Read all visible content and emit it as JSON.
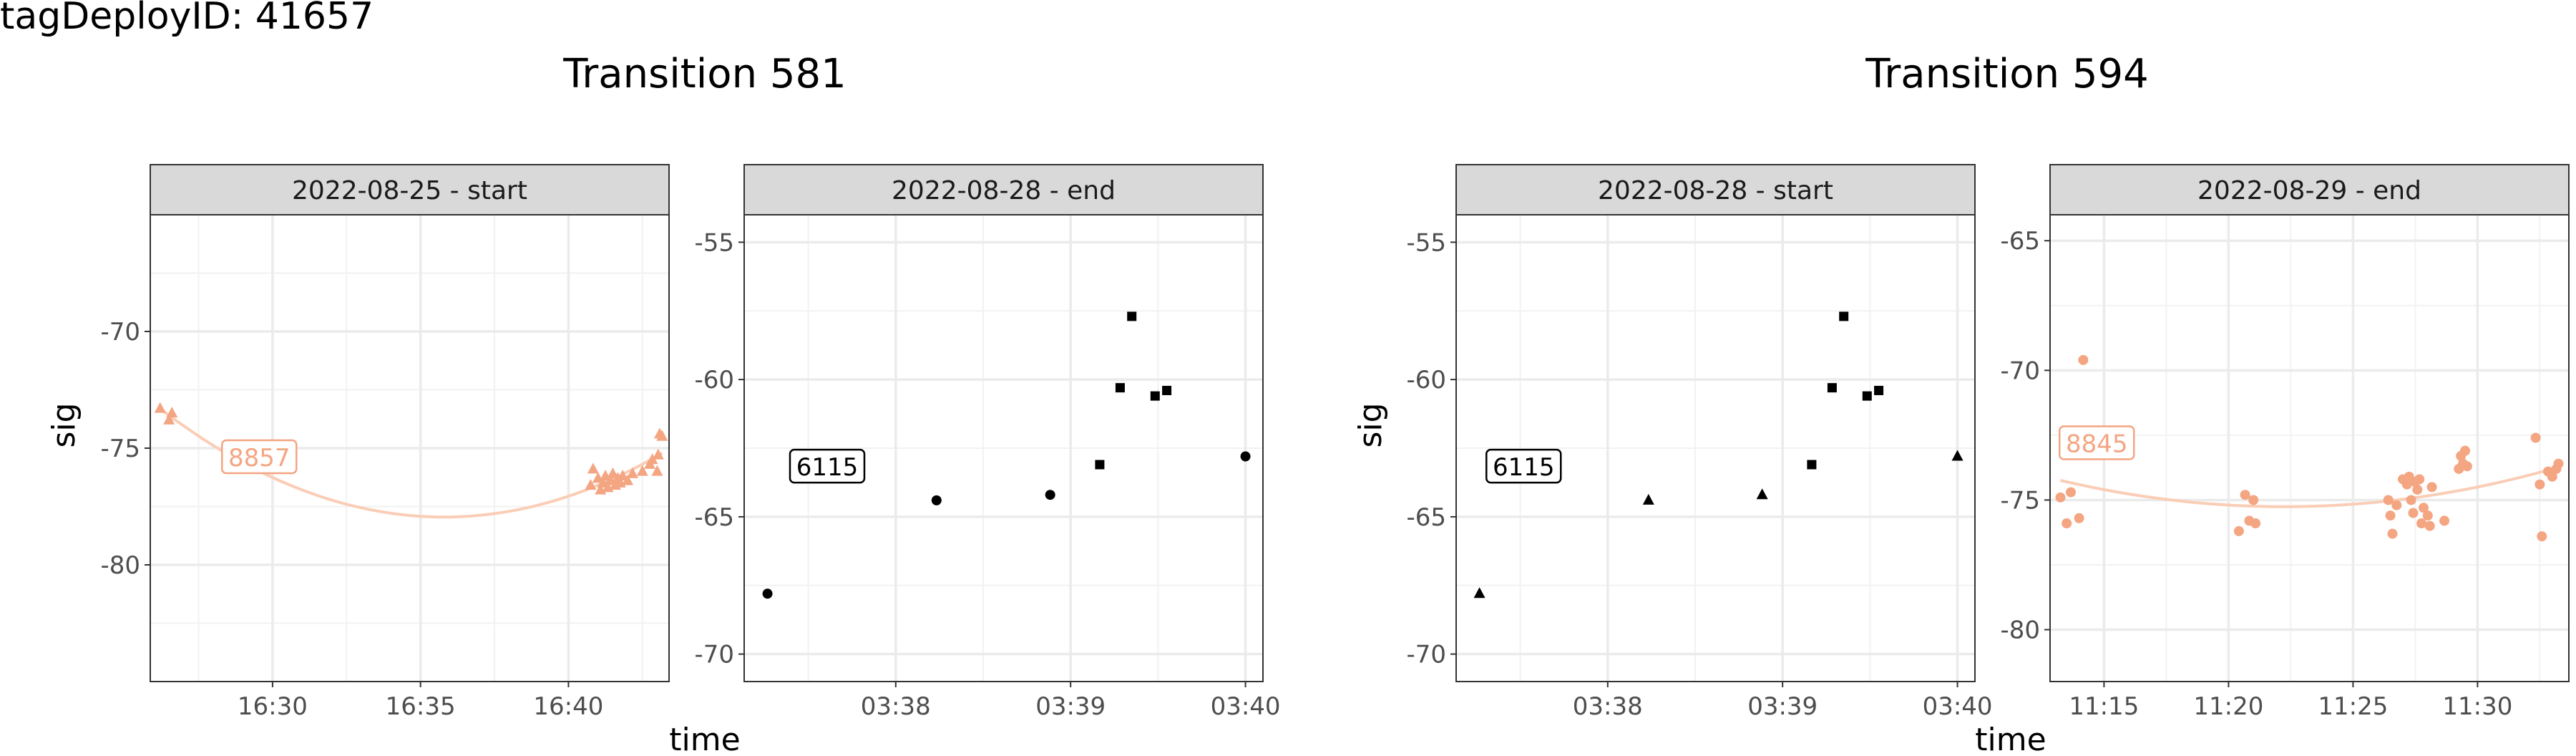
{
  "figure_title": "tagDeployID: 41657",
  "x_label": "time",
  "y_label": "sig",
  "colors": {
    "orange": "#F4A582",
    "orange_line": "#FACDB6",
    "black": "#000000",
    "strip_fill": "#D9D9D9",
    "grid": "#EBEBEB"
  },
  "chart_data": [
    {
      "type": "scatter",
      "group_title": "Transition 581",
      "panel": "2022-08-25 - start",
      "ylim": [
        -85,
        -65
      ],
      "y_ticks": [
        -70,
        -75,
        -80
      ],
      "xlim": [
        "16:25:52",
        "16:43:24"
      ],
      "x_ticks": [
        "16:30",
        "16:35",
        "16:40"
      ],
      "grid": true,
      "series": [
        {
          "label": "8857",
          "marker": "triangle",
          "color": "#F4A582",
          "smooth_line": true,
          "points": [
            [
              "16:26:12",
              -73.3
            ],
            [
              "16:26:30",
              -73.8
            ],
            [
              "16:26:36",
              -73.5
            ],
            [
              "16:40:45",
              -76.6
            ],
            [
              "16:40:50",
              -75.9
            ],
            [
              "16:41:00",
              -76.3
            ],
            [
              "16:41:05",
              -76.8
            ],
            [
              "16:41:10",
              -76.5
            ],
            [
              "16:41:15",
              -76.2
            ],
            [
              "16:41:20",
              -76.7
            ],
            [
              "16:41:25",
              -76.4
            ],
            [
              "16:41:30",
              -76.1
            ],
            [
              "16:41:35",
              -76.6
            ],
            [
              "16:41:40",
              -76.3
            ],
            [
              "16:41:45",
              -76.5
            ],
            [
              "16:41:50",
              -76.2
            ],
            [
              "16:42:00",
              -76.4
            ],
            [
              "16:42:10",
              -76.1
            ],
            [
              "16:42:30",
              -76.0
            ],
            [
              "16:42:45",
              -75.7
            ],
            [
              "16:42:50",
              -75.5
            ],
            [
              "16:43:00",
              -76.0
            ],
            [
              "16:43:02",
              -75.3
            ],
            [
              "16:43:05",
              -74.4
            ],
            [
              "16:43:10",
              -74.5
            ]
          ]
        }
      ]
    },
    {
      "type": "scatter",
      "group_title": "Transition 581",
      "panel": "2022-08-28 - end",
      "ylim": [
        -71,
        -54
      ],
      "y_ticks": [
        -55,
        -60,
        -65,
        -70
      ],
      "xlim": [
        "03:37:08",
        "03:40:06"
      ],
      "x_ticks": [
        "03:38",
        "03:39",
        "03:40"
      ],
      "grid": true,
      "series": [
        {
          "label": "6115",
          "marker": "circle",
          "color": "#000000",
          "points": [
            [
              "03:37:16",
              -67.8
            ],
            [
              "03:38:14",
              -64.4
            ],
            [
              "03:38:53",
              -64.2
            ],
            [
              "03:40:00",
              -62.8
            ]
          ]
        },
        {
          "label": "",
          "marker": "square",
          "color": "#000000",
          "points": [
            [
              "03:39:10",
              -63.1
            ],
            [
              "03:39:17",
              -60.3
            ],
            [
              "03:39:21",
              -57.7
            ],
            [
              "03:39:29",
              -60.6
            ],
            [
              "03:39:33",
              -60.4
            ]
          ]
        }
      ]
    },
    {
      "type": "scatter",
      "group_title": "Transition 594",
      "panel": "2022-08-28 - start",
      "ylim": [
        -71,
        -54
      ],
      "y_ticks": [
        -55,
        -60,
        -65,
        -70
      ],
      "xlim": [
        "03:37:08",
        "03:40:06"
      ],
      "x_ticks": [
        "03:38",
        "03:39",
        "03:40"
      ],
      "grid": true,
      "series": [
        {
          "label": "6115",
          "marker": "triangle",
          "color": "#000000",
          "points": [
            [
              "03:37:16",
              -67.8
            ],
            [
              "03:38:14",
              -64.4
            ],
            [
              "03:38:53",
              -64.2
            ],
            [
              "03:40:00",
              -62.8
            ]
          ]
        },
        {
          "label": "",
          "marker": "square",
          "color": "#000000",
          "points": [
            [
              "03:39:10",
              -63.1
            ],
            [
              "03:39:17",
              -60.3
            ],
            [
              "03:39:21",
              -57.7
            ],
            [
              "03:39:29",
              -60.6
            ],
            [
              "03:39:33",
              -60.4
            ]
          ]
        }
      ]
    },
    {
      "type": "scatter",
      "group_title": "Transition 594",
      "panel": "2022-08-29 - end",
      "ylim": [
        -82,
        -64
      ],
      "y_ticks": [
        -65,
        -70,
        -75,
        -80
      ],
      "xlim": [
        "11:12:50",
        "11:33:40"
      ],
      "x_ticks": [
        "11:15",
        "11:20",
        "11:25",
        "11:30"
      ],
      "grid": true,
      "series": [
        {
          "label": "8845",
          "marker": "circle",
          "color": "#F4A582",
          "smooth_line": true,
          "points": [
            [
              "11:13:15",
              -74.9
            ],
            [
              "11:13:30",
              -75.9
            ],
            [
              "11:13:40",
              -74.7
            ],
            [
              "11:14:00",
              -75.7
            ],
            [
              "11:14:10",
              -69.6
            ],
            [
              "11:20:25",
              -76.2
            ],
            [
              "11:20:40",
              -74.8
            ],
            [
              "11:20:50",
              -75.8
            ],
            [
              "11:21:00",
              -75.0
            ],
            [
              "11:21:05",
              -75.9
            ],
            [
              "11:26:25",
              -75.0
            ],
            [
              "11:26:30",
              -75.6
            ],
            [
              "11:26:35",
              -76.3
            ],
            [
              "11:26:45",
              -75.2
            ],
            [
              "11:27:00",
              -74.2
            ],
            [
              "11:27:10",
              -74.4
            ],
            [
              "11:27:15",
              -74.1
            ],
            [
              "11:27:20",
              -75.0
            ],
            [
              "11:27:25",
              -75.5
            ],
            [
              "11:27:30",
              -74.3
            ],
            [
              "11:27:35",
              -74.6
            ],
            [
              "11:27:40",
              -74.2
            ],
            [
              "11:27:45",
              -75.9
            ],
            [
              "11:27:50",
              -75.3
            ],
            [
              "11:28:00",
              -75.6
            ],
            [
              "11:28:05",
              -76.0
            ],
            [
              "11:28:10",
              -74.5
            ],
            [
              "11:28:40",
              -75.8
            ],
            [
              "11:29:15",
              -73.8
            ],
            [
              "11:29:20",
              -73.3
            ],
            [
              "11:29:25",
              -73.6
            ],
            [
              "11:29:30",
              -73.1
            ],
            [
              "11:29:35",
              -73.7
            ],
            [
              "11:32:20",
              -72.6
            ],
            [
              "11:32:30",
              -74.4
            ],
            [
              "11:32:35",
              -76.4
            ],
            [
              "11:32:50",
              -73.9
            ],
            [
              "11:33:00",
              -74.1
            ],
            [
              "11:33:10",
              -73.8
            ],
            [
              "11:33:15",
              -73.6
            ]
          ]
        }
      ]
    }
  ]
}
